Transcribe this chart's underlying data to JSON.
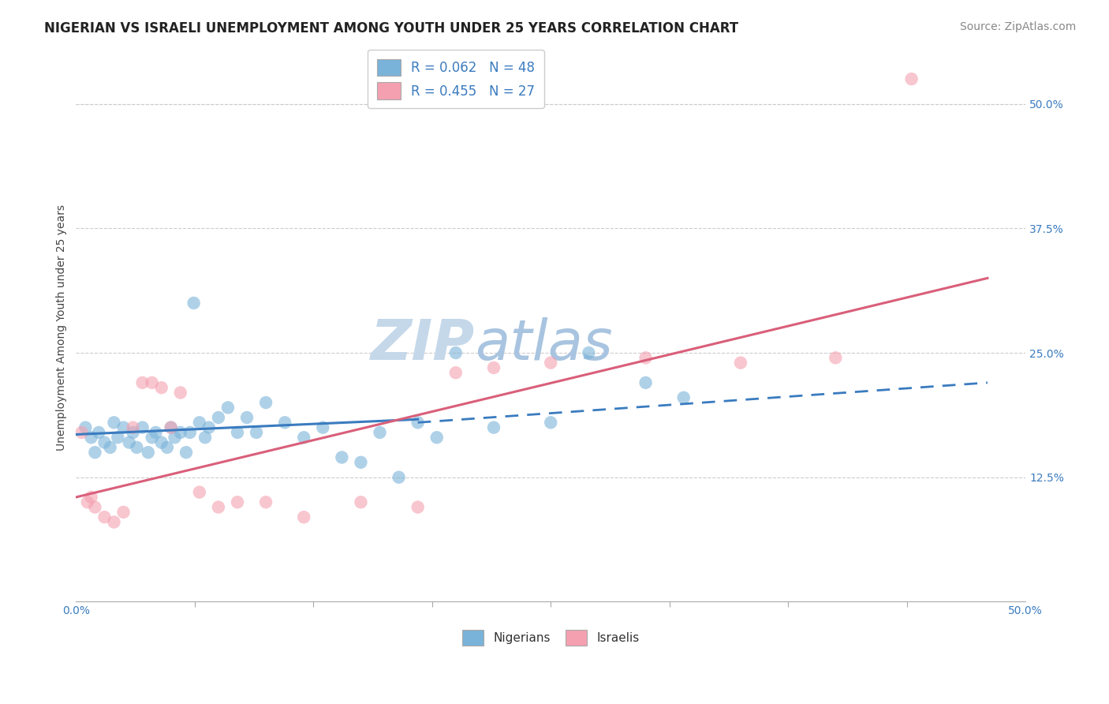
{
  "title": "NIGERIAN VS ISRAELI UNEMPLOYMENT AMONG YOUTH UNDER 25 YEARS CORRELATION CHART",
  "source": "Source: ZipAtlas.com",
  "ylabel": "Unemployment Among Youth under 25 years",
  "legend_labels": [
    "Nigerians",
    "Israelis"
  ],
  "nigerian_color": "#7ab3d9",
  "israeli_color": "#f4a0b0",
  "nigerian_line_color": "#3a7bbf",
  "israeli_line_color": "#d95f7a",
  "R_nigerian": 0.062,
  "N_nigerian": 48,
  "R_israeli": 0.455,
  "N_israeli": 27,
  "nigerian_x": [
    0.5,
    0.8,
    1.0,
    1.2,
    1.5,
    1.8,
    2.0,
    2.2,
    2.5,
    2.8,
    3.0,
    3.2,
    3.5,
    3.8,
    4.0,
    4.2,
    4.5,
    4.8,
    5.0,
    5.2,
    5.5,
    5.8,
    6.0,
    6.2,
    6.5,
    6.8,
    7.0,
    7.5,
    8.0,
    8.5,
    9.0,
    9.5,
    10.0,
    11.0,
    12.0,
    13.0,
    14.0,
    15.0,
    16.0,
    17.0,
    18.0,
    19.0,
    20.0,
    22.0,
    25.0,
    27.0,
    30.0,
    32.0
  ],
  "nigerian_y": [
    17.5,
    16.5,
    15.0,
    17.0,
    16.0,
    15.5,
    18.0,
    16.5,
    17.5,
    16.0,
    17.0,
    15.5,
    17.5,
    15.0,
    16.5,
    17.0,
    16.0,
    15.5,
    17.5,
    16.5,
    17.0,
    15.0,
    17.0,
    30.0,
    18.0,
    16.5,
    17.5,
    18.5,
    19.5,
    17.0,
    18.5,
    17.0,
    20.0,
    18.0,
    16.5,
    17.5,
    14.5,
    14.0,
    17.0,
    12.5,
    18.0,
    16.5,
    25.0,
    17.5,
    18.0,
    25.0,
    22.0,
    20.5
  ],
  "israeli_x": [
    0.3,
    0.6,
    0.8,
    1.0,
    1.5,
    2.0,
    2.5,
    3.0,
    3.5,
    4.0,
    4.5,
    5.0,
    5.5,
    6.5,
    7.5,
    8.5,
    10.0,
    12.0,
    15.0,
    18.0,
    20.0,
    22.0,
    25.0,
    30.0,
    35.0,
    40.0,
    44.0
  ],
  "israeli_y": [
    17.0,
    10.0,
    10.5,
    9.5,
    8.5,
    8.0,
    9.0,
    17.5,
    22.0,
    22.0,
    21.5,
    17.5,
    21.0,
    11.0,
    9.5,
    10.0,
    10.0,
    8.5,
    10.0,
    9.5,
    23.0,
    23.5,
    24.0,
    24.5,
    24.0,
    24.5,
    52.5
  ],
  "nigerian_trend_x": [
    0.0,
    32.0
  ],
  "nigerian_trend_y": [
    16.8,
    19.5
  ],
  "nigerian_solid_end_x": 18.0,
  "nigerian_dashed_start_x": 18.0,
  "nigerian_dashed_end_x": 48.0,
  "nigerian_dashed_start_y": 18.0,
  "nigerian_dashed_end_y": 22.0,
  "israeli_trend_x": [
    0.0,
    48.0
  ],
  "israeli_trend_y": [
    10.5,
    32.5
  ],
  "xlim": [
    0,
    50
  ],
  "ylim": [
    0,
    55
  ],
  "yticks": [
    12.5,
    25.0,
    37.5,
    50.0
  ],
  "xtick_minor_positions": [
    6.25,
    12.5,
    18.75,
    25.0,
    31.25,
    37.5,
    43.75
  ],
  "watermark_zip": "ZIP",
  "watermark_atlas": "atlas",
  "watermark_color": "#c5d8ea",
  "title_fontsize": 12,
  "source_fontsize": 10,
  "label_fontsize": 10,
  "tick_fontsize": 10,
  "dot_size": 140
}
